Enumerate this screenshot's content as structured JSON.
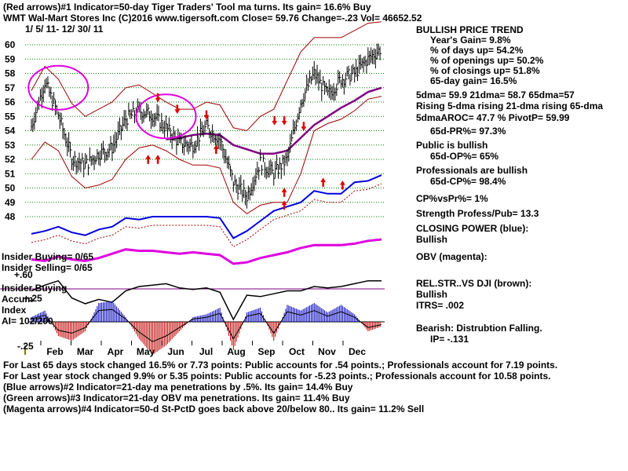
{
  "header": {
    "line1": "(Red arrows)#1 Indicator=50-day Tiger Traders' Tool ma turns. Its gain= 16.6% Buy",
    "line2": "WMT  Wal-Mart Stores Inc  (C)2016 www.tigersoft.com    Close=  59.76  Change=-.23 Vol= 46652.52",
    "date_range": "1/ 5/ 11-  12/ 30/ 11"
  },
  "right_panel": {
    "trend_title": "BULLISH PRICE TREND",
    "years_gain": "Year's Gain= 9.8%",
    "pct_days_up": "% of days up= 54.2%",
    "pct_openings_up": "% of openings up= 50.2%",
    "pct_closings_up": "% of closings up= 51.8%",
    "gain_65day": "65-day gain= 16.5%",
    "dma_line": "5dma= 59.9 21dma= 58.7 65dma=57",
    "rising_line": "Rising 5-dma rising 21-dma rising 65-dma",
    "aroc_line": "5dmaAROC= 47.7 %  PivotP= 59.99",
    "pr_line": "65d-PR%= 97.3%",
    "public": "Public is bullish",
    "op_line": "65d-OP%= 65%",
    "professionals": "Professionals are bullish",
    "cp_line": "65d-CP%= 98.4%",
    "cpvspr": "CP%vsPr%=  1%",
    "strength": "Strength Profess/Pub= 13.3",
    "closing_power": "CLOSING POWER (blue):",
    "closing_power_val": "Bullish",
    "obv": "OBV (magenta):",
    "relstr": "REL.STR..VS DJI (brown):",
    "relstr_val": "Bullish",
    "itrs": "ITRS= .002",
    "bearish": "Bearish: Distrubtion Falling.",
    "ip": "IP= -.131"
  },
  "left_labels": {
    "insider_buying": "Insider Buying= 0/65",
    "insider_selling": "Insider Selling= 0/65",
    "insider_buying2": "Insider Buying",
    "plus60": "+.60",
    "accum": "Accum",
    "plus25": "+.25",
    "index": "Index",
    "ai": "AI= 102/200",
    "minus25": "-.25"
  },
  "footer": {
    "line1": "For Last 65 days stock changed  16.5% or  7.73 points:  Public accounts for  .54 points.;  Professionals account for  7.19 points.",
    "line2": "For Last year stock changed  9.9% or  5.35 points:  Public accounts for  -5.23 points.;  Professionals account for  10.58 points.",
    "line3": "(Blue arrows)#2 Indicator=21-day ma penetrations by .5%. Its gain= 14.4% Buy",
    "line4": "(Green arrows)#3 Indicator=21-day OBV ma penetrations. Its gain= 11.4% Buy",
    "line5": "(Magenta arrows)#4 Indicator=50-d St-PctD goes back above 20/below 80.. Its gain= 11.2% Sell"
  },
  "colors": {
    "price": "#000000",
    "bands": "#a00000",
    "ma65": "#800080",
    "closing_power": "#0000e0",
    "obv": "#e000e0",
    "relstr": "#a05050",
    "accum_pos": "#0000c0",
    "accum_neg": "#c00000",
    "grid": "#008000",
    "circle": "#e000e0",
    "arrow": "#e00000"
  },
  "chart_data": {
    "type": "line",
    "y_ticks": [
      "60",
      "59",
      "58",
      "57",
      "56",
      "55",
      "54",
      "53",
      "52",
      "51",
      "50",
      "49",
      "48"
    ],
    "ylim": [
      48,
      60
    ],
    "months": [
      "Feb",
      "Mar",
      "Apr",
      "May",
      "Jun",
      "Jul",
      "Aug",
      "Sep",
      "Oct",
      "Nov",
      "Dec"
    ],
    "grid": true,
    "close_series": {
      "name": "WMT",
      "x": [
        "1/5",
        "1/20",
        "2/3",
        "2/17",
        "3/3",
        "3/17",
        "3/31",
        "4/14",
        "4/28",
        "5/12",
        "5/26",
        "6/9",
        "6/23",
        "7/7",
        "7/21",
        "8/4",
        "8/18",
        "9/1",
        "9/15",
        "9/29",
        "10/13",
        "10/27",
        "11/10",
        "11/24",
        "12/8",
        "12/22",
        "12/30"
      ],
      "values": [
        54.3,
        57.4,
        55.1,
        52.1,
        51.6,
        52.4,
        52.8,
        54.8,
        55.4,
        55.1,
        54.2,
        53.1,
        53.0,
        54.3,
        53.4,
        50.4,
        49.4,
        51.8,
        51.0,
        52.0,
        56.0,
        58.0,
        56.5,
        57.6,
        58.0,
        59.0,
        59.76
      ]
    },
    "upper_band": [
      56.8,
      58.5,
      57.6,
      55.9,
      55.0,
      55.5,
      56.0,
      57.0,
      57.2,
      56.6,
      56.0,
      55.5,
      55.5,
      56.0,
      55.8,
      54.2,
      54.0,
      55.0,
      55.5,
      57.5,
      59.5,
      60.5,
      60.5,
      60.5,
      61.0,
      61.5,
      61.6
    ],
    "lower_band": [
      52.0,
      53.2,
      52.6,
      50.8,
      50.0,
      50.2,
      50.6,
      52.0,
      52.8,
      53.0,
      52.6,
      52.0,
      51.6,
      51.6,
      51.4,
      49.0,
      48.2,
      48.8,
      49.0,
      49.0,
      51.0,
      54.0,
      54.5,
      54.8,
      55.4,
      56.2,
      56.4
    ],
    "ma65": [
      null,
      null,
      null,
      null,
      null,
      null,
      null,
      null,
      null,
      null,
      53.4,
      53.5,
      53.7,
      53.8,
      53.7,
      53.0,
      52.7,
      52.4,
      52.4,
      52.6,
      53.5,
      54.4,
      55.0,
      55.6,
      56.1,
      56.7,
      57.0
    ],
    "closing_power": [
      46.8,
      47.0,
      47.3,
      46.9,
      46.7,
      47.1,
      47.3,
      47.9,
      47.8,
      48.0,
      48.0,
      48.0,
      48.0,
      48.0,
      47.9,
      46.5,
      47.0,
      47.7,
      48.4,
      48.7,
      49.0,
      49.8,
      49.6,
      49.6,
      50.4,
      50.5,
      50.9
    ],
    "obv": [
      46.0,
      45.9,
      46.2,
      46.0,
      45.9,
      46.1,
      46.4,
      46.7,
      46.6,
      46.6,
      46.5,
      46.4,
      46.5,
      46.4,
      46.3,
      45.7,
      45.8,
      46.1,
      46.3,
      46.5,
      46.8,
      47.0,
      47.0,
      47.0,
      47.1,
      47.3,
      47.4
    ],
    "relstr": [
      46.0,
      46.4,
      46.7,
      45.5,
      45.1,
      45.4,
      45.2,
      46.0,
      46.3,
      46.4,
      46.5,
      46.2,
      46.1,
      46.2,
      45.9,
      44.0,
      45.7,
      45.6,
      45.8,
      46.0,
      46.0,
      46.3,
      46.2,
      46.3,
      46.5,
      46.7,
      46.7
    ],
    "accum_index": [
      0.05,
      0.12,
      -0.15,
      -0.2,
      -0.1,
      0.2,
      0.22,
      0.05,
      -0.18,
      -0.35,
      -0.25,
      -0.1,
      0.05,
      0.08,
      0.15,
      -0.3,
      0.1,
      0.15,
      -0.2,
      0.18,
      0.12,
      0.2,
      0.1,
      0.18,
      0.08,
      -0.1,
      -0.05
    ],
    "annotations": {
      "red_up_arrows": [
        [
          12,
          52.3
        ],
        [
          13,
          52.3
        ],
        [
          19,
          53.0
        ],
        [
          26,
          50.0
        ],
        [
          26,
          49.1
        ],
        [
          30,
          50.7
        ],
        [
          32,
          50.5
        ]
      ],
      "red_down_arrows": [
        [
          13,
          56.0
        ],
        [
          15,
          55.2
        ],
        [
          18,
          54.8
        ],
        [
          25,
          54.4
        ],
        [
          26,
          54.4
        ],
        [
          28,
          54.0
        ]
      ],
      "circles": [
        [
          2,
          57.0
        ],
        [
          10,
          55.0
        ]
      ]
    }
  }
}
